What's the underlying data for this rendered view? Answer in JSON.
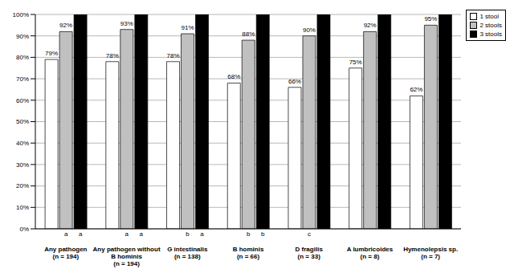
{
  "chart_data": {
    "type": "bar",
    "categories": [
      "Any pathogen (n = 194)",
      "Any pathogen without B hominis (n = 194)",
      "G intestinalis (n = 138)",
      "B hominis (n = 66)",
      "D fragilis (n = 33)",
      "A lumbricoides (n = 8)",
      "Hymenolepsis sp. (n = 7)"
    ],
    "series": [
      {
        "name": "1 stool",
        "color": "#ffffff",
        "values": [
          79,
          78,
          78,
          68,
          66,
          75,
          62
        ],
        "value_labels": [
          "79%",
          "78%",
          "78%",
          "68%",
          "66%",
          "75%",
          "62%"
        ],
        "data_labels": true
      },
      {
        "name": "2 stools",
        "color": "#c0c0c0",
        "values": [
          92,
          93,
          91,
          88,
          90,
          92,
          95
        ],
        "value_labels": [
          "92%",
          "93%",
          "91%",
          "88%",
          "90%",
          "92%",
          "95%"
        ],
        "data_labels": true,
        "letters": [
          "a",
          "a",
          "b",
          "b",
          "c",
          null,
          null
        ]
      },
      {
        "name": "3 stools",
        "color": "#000000",
        "values": [
          100,
          100,
          100,
          100,
          100,
          100,
          100
        ],
        "data_labels": false,
        "letters": [
          "a",
          "a",
          "a",
          "b",
          null,
          null,
          null
        ]
      }
    ],
    "ylim": [
      0,
      100
    ],
    "yticks": [
      {
        "value": 0,
        "label": "0%"
      },
      {
        "value": 10,
        "label": "10%"
      },
      {
        "value": 20,
        "label": "20%"
      },
      {
        "value": 30,
        "label": "30%"
      },
      {
        "value": 40,
        "label": "40%"
      },
      {
        "value": 50,
        "label": "50%"
      },
      {
        "value": 60,
        "label": "60%"
      },
      {
        "value": 70,
        "label": "70%"
      },
      {
        "value": 80,
        "label": "80%"
      },
      {
        "value": 90,
        "label": "90%"
      },
      {
        "value": 100,
        "label": "100%"
      }
    ],
    "grid": true,
    "legend": "upper right"
  }
}
